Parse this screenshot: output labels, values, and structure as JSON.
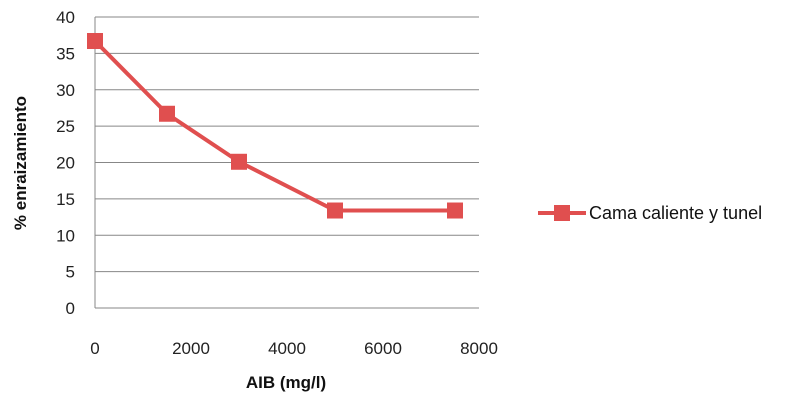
{
  "colors": {
    "series": "#e04f4f",
    "grid": "#878787",
    "axis": "#878787"
  },
  "chart_data": {
    "type": "line",
    "title": "",
    "xlabel": "AIB (mg/l)",
    "ylabel": "% enraizamiento",
    "xlim": [
      0,
      8000
    ],
    "ylim": [
      0,
      40
    ],
    "xticks": [
      "0",
      "2000",
      "4000",
      "6000",
      "8000"
    ],
    "yticks": [
      "0",
      "5",
      "10",
      "15",
      "20",
      "25",
      "30",
      "35",
      "40"
    ],
    "grid": "horizontal",
    "legend_position": "right",
    "series": [
      {
        "name": "Cama caliente y tunel",
        "marker": "square",
        "x": [
          0,
          1500,
          3000,
          5000,
          7500
        ],
        "y": [
          36.7,
          26.7,
          20.1,
          13.4,
          13.4
        ]
      }
    ]
  }
}
